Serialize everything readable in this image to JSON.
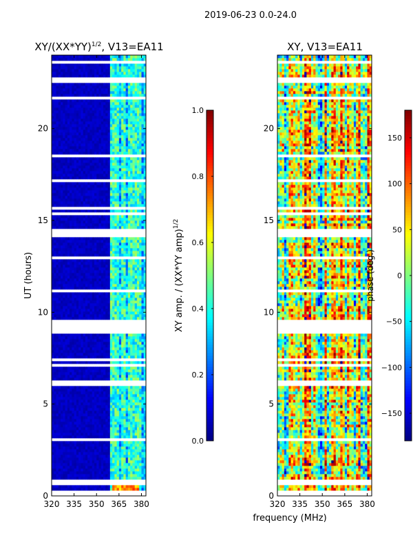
{
  "suptitle": "2019-06-23 0.0-24.0",
  "colors": {
    "gap": "#ffffff",
    "axis": "#000000",
    "jet": [
      "#00007f",
      "#0000ff",
      "#007fff",
      "#00ffff",
      "#7fff7f",
      "#ffff00",
      "#ff7f00",
      "#ff0000",
      "#7f0000"
    ]
  },
  "chart_data": [
    {
      "type": "heatmap",
      "title_main": "XY/(XX*YY)",
      "title_sup": "1/2",
      "title_tail": ", V13=EA11",
      "xlabel": "",
      "ylabel": "UT (hours)",
      "xlim": [
        320,
        383
      ],
      "ylim": [
        0,
        24
      ],
      "xticks": [
        320,
        335,
        350,
        365,
        380
      ],
      "xtick_labels": [
        "320",
        "335",
        "350",
        "365",
        "380"
      ],
      "yticks": [
        0,
        5,
        10,
        15,
        20
      ],
      "ytick_labels": [
        "0",
        "5",
        "10",
        "15",
        "20"
      ],
      "colorbar": {
        "label_main": "XY amp. / (XX*YY amp)",
        "label_sup": "1/2",
        "lim": [
          0,
          1
        ],
        "ticks": [
          0,
          0.2,
          0.4,
          0.6,
          0.8,
          1.0
        ],
        "tick_labels": [
          "0.0",
          "0.2",
          "0.4",
          "0.6",
          "0.8",
          "1.0"
        ]
      },
      "colormap": "jet",
      "value_summary": "Mostly ~0.05 for 320-360 MHz; bright band 0.3-0.55 for 360-380 MHz; values up to ~0.7 near 0.5 h around 362-378 MHz"
    },
    {
      "type": "heatmap",
      "title_main": "XY, V13=EA11",
      "xlabel": "frequency (MHz)",
      "ylabel": "",
      "xlim": [
        320,
        383
      ],
      "ylim": [
        0,
        24
      ],
      "xticks": [
        320,
        335,
        350,
        365,
        380
      ],
      "xtick_labels": [
        "320",
        "335",
        "350",
        "365",
        "380"
      ],
      "yticks": [
        0,
        5,
        10,
        15,
        20
      ],
      "ytick_labels": [
        "0",
        "5",
        "10",
        "15",
        "20"
      ],
      "colorbar": {
        "label": "phase (deg.)",
        "lim": [
          -180,
          180
        ],
        "ticks": [
          -150,
          -100,
          -50,
          0,
          50,
          100,
          150
        ],
        "tick_labels": [
          "−150",
          "−100",
          "−50",
          "0",
          "50",
          "100",
          "150"
        ]
      },
      "colormap": "jet",
      "value_summary": "Phases span the full -180 to 180 deg range with vertical striping across frequency"
    }
  ]
}
